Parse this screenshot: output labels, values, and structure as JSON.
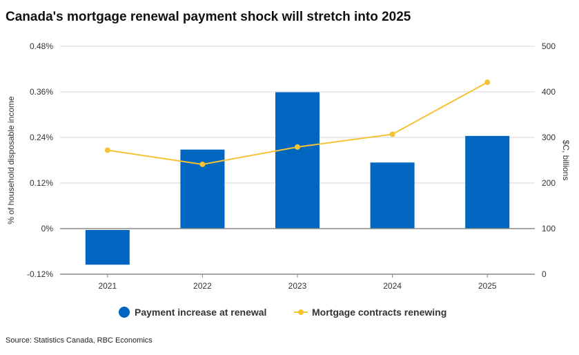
{
  "chart_data": {
    "type": "bar+line",
    "title": "Canada's mortgage renewal payment shock will stretch into 2025",
    "source": "Source: Statistics Canada, RBC Economics",
    "categories": [
      "2021",
      "2022",
      "2023",
      "2024",
      "2025"
    ],
    "ylabel": "% of household disposable income",
    "y2label": "$C, billions",
    "ylim": [
      -0.12,
      0.48
    ],
    "y2lim": [
      0,
      500
    ],
    "yticks": [
      "-0.12%",
      "0%",
      "0.12%",
      "0.24%",
      "0.36%",
      "0.48%"
    ],
    "yticks_values": [
      -0.12,
      0,
      0.12,
      0.24,
      0.36,
      0.48
    ],
    "y2ticks": [
      "0",
      "100",
      "200",
      "300",
      "400",
      "500"
    ],
    "y2ticks_values": [
      0,
      100,
      200,
      300,
      400,
      500
    ],
    "grid": true,
    "legend_position": "bottom",
    "series": [
      {
        "name": "Payment increase at renewal",
        "type": "bar",
        "axis": "left",
        "color": "#0066bf",
        "values": [
          -0.095,
          0.208,
          0.359,
          0.174,
          0.244
        ]
      },
      {
        "name": "Mortgage contracts renewing",
        "type": "line",
        "axis": "right",
        "color": "#f5c334",
        "values": [
          272,
          241,
          279,
          307,
          421
        ]
      }
    ]
  }
}
